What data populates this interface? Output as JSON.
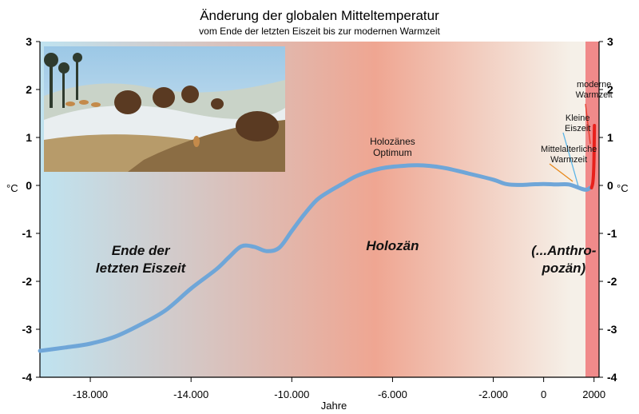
{
  "chart_data": {
    "type": "line",
    "title": "Änderung der globalen Mitteltemperatur",
    "subtitle": "vom Ende der letzten Eiszeit bis zur modernen Warmzeit",
    "xlabel": "Jahre",
    "ylabel_left": "°C",
    "ylabel_right": "°C",
    "ylim": [
      -4,
      3
    ],
    "yticks": [
      3,
      2,
      1,
      0,
      -1,
      -2,
      -3,
      -4
    ],
    "ytick_labels": [
      "3",
      "2",
      "1",
      "0",
      "-1",
      "-2",
      "-3",
      "-4"
    ],
    "xticks": [
      {
        "value": -18000,
        "label": "-18.000"
      },
      {
        "value": -14000,
        "label": "-14.000"
      },
      {
        "value": -10000,
        "label": "-10.000"
      },
      {
        "value": -6000,
        "label": "-6.000"
      },
      {
        "value": -2000,
        "label": "-2.000"
      },
      {
        "value": 0,
        "label": "0"
      },
      {
        "value": 2000,
        "label": "2000"
      }
    ],
    "series": [
      {
        "values": [
          [
            -20000,
            -3.45
          ],
          [
            -19000,
            -3.38
          ],
          [
            -18000,
            -3.3
          ],
          [
            -17000,
            -3.15
          ],
          [
            -16000,
            -2.9
          ],
          [
            -15000,
            -2.6
          ],
          [
            -14000,
            -2.15
          ],
          [
            -13000,
            -1.75
          ],
          [
            -12500,
            -1.5
          ],
          [
            -12000,
            -1.27
          ],
          [
            -11500,
            -1.28
          ],
          [
            -11000,
            -1.37
          ],
          [
            -10500,
            -1.3
          ],
          [
            -10000,
            -0.95
          ],
          [
            -9500,
            -0.6
          ],
          [
            -9000,
            -0.3
          ],
          [
            -8500,
            -0.12
          ],
          [
            -8000,
            0.03
          ],
          [
            -7500,
            0.18
          ],
          [
            -7000,
            0.28
          ],
          [
            -6500,
            0.35
          ],
          [
            -6000,
            0.39
          ],
          [
            -5000,
            0.42
          ],
          [
            -4000,
            0.37
          ],
          [
            -3000,
            0.25
          ],
          [
            -2000,
            0.12
          ],
          [
            -1500,
            0.03
          ],
          [
            -1000,
            0.01
          ],
          [
            -500,
            0.02
          ],
          [
            0,
            0.03
          ],
          [
            500,
            0.02
          ],
          [
            1000,
            0.02
          ],
          [
            1500,
            -0.07
          ],
          [
            1700,
            -0.09
          ],
          [
            1850,
            -0.05
          ]
        ]
      },
      {
        "values": [
          [
            1900,
            -0.05
          ],
          [
            1950,
            0.05
          ],
          [
            1980,
            0.25
          ],
          [
            2000,
            0.6
          ],
          [
            2015,
            1.25
          ]
        ]
      }
    ],
    "eras": [
      {
        "label_lines": [
          "Ende der",
          "letzten Eiszeit"
        ],
        "x": -16000,
        "y": -1.45
      },
      {
        "label_lines": [
          "Holozän"
        ],
        "x": -6000,
        "y": -1.35
      },
      {
        "label_lines": [
          "(...Anthro-",
          "pozän)"
        ],
        "x": 800,
        "y": -1.45
      }
    ],
    "annotations": [
      {
        "text_lines": [
          "Holozänes",
          "Optimum"
        ],
        "x": -6000,
        "y": 0.85
      },
      {
        "text_lines": [
          "Mittelalterliche",
          "Warmzeit"
        ],
        "x": 1000,
        "y": 0.7
      },
      {
        "text_lines": [
          "Kleine",
          "Eiszeit"
        ],
        "x": 1350,
        "y": 1.35
      },
      {
        "text_lines": [
          "moderne",
          "Warmzeit"
        ],
        "x": 2000,
        "y": 2.05
      }
    ]
  },
  "colors": {
    "background_left": "#bfe3f0",
    "background_mid": "#efa692",
    "background_right": "#f5f0e8",
    "modern_band": "#f08a8a",
    "curve": "#6fa6d8",
    "modern_curve": "#e8201b",
    "arrow_orange": "#e8891c",
    "arrow_blue": "#5ab4e6",
    "arrow_red": "#e33a2a"
  },
  "image": {
    "icon": "ice-age-megafauna-painting"
  }
}
